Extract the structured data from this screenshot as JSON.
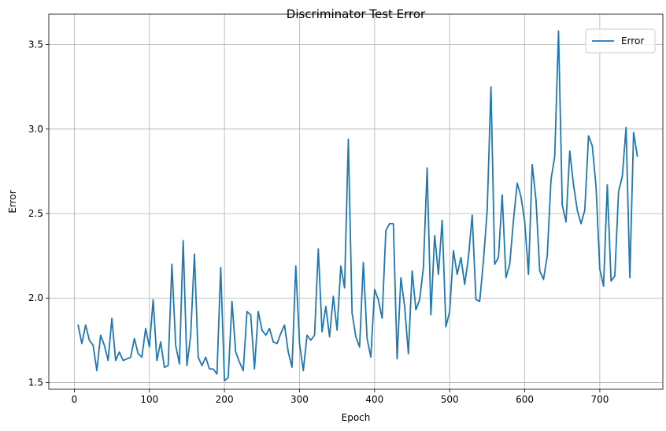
{
  "chart_data": {
    "type": "line",
    "title": "Discriminator Test Error",
    "xlabel": "Epoch",
    "ylabel": "Error",
    "xlim": [
      -34,
      784
    ],
    "ylim": [
      1.46,
      3.68
    ],
    "xticks": [
      0,
      100,
      200,
      300,
      400,
      500,
      600,
      700
    ],
    "yticks": [
      1.5,
      2.0,
      2.5,
      3.0,
      3.5
    ],
    "ytick_labels": [
      "1.5",
      "2.0",
      "2.5",
      "3.0",
      "3.5"
    ],
    "grid": true,
    "legend": "top-right",
    "series": [
      {
        "name": "Error",
        "color": "#1f77b4",
        "x": [
          5,
          10,
          15,
          20,
          25,
          30,
          35,
          40,
          45,
          50,
          55,
          60,
          65,
          70,
          75,
          80,
          85,
          90,
          95,
          100,
          105,
          110,
          115,
          120,
          125,
          130,
          135,
          140,
          145,
          150,
          155,
          160,
          165,
          170,
          175,
          180,
          185,
          190,
          195,
          200,
          205,
          210,
          215,
          220,
          225,
          230,
          235,
          240,
          245,
          250,
          255,
          260,
          265,
          270,
          275,
          280,
          285,
          290,
          295,
          300,
          305,
          310,
          315,
          320,
          325,
          330,
          335,
          340,
          345,
          350,
          355,
          360,
          365,
          370,
          375,
          380,
          385,
          390,
          395,
          400,
          405,
          410,
          415,
          420,
          425,
          430,
          435,
          440,
          445,
          450,
          455,
          460,
          465,
          470,
          475,
          480,
          485,
          490,
          495,
          500,
          505,
          510,
          515,
          520,
          525,
          530,
          535,
          540,
          545,
          550,
          555,
          560,
          565,
          570,
          575,
          580,
          585,
          590,
          595,
          600,
          605,
          610,
          615,
          620,
          625,
          630,
          635,
          640,
          645,
          650,
          655,
          660,
          665,
          670,
          675,
          680,
          685,
          690,
          695,
          700,
          705,
          710,
          715,
          720,
          725,
          730,
          735,
          740,
          745,
          750
        ],
        "values": [
          1.84,
          1.73,
          1.84,
          1.75,
          1.72,
          1.57,
          1.78,
          1.72,
          1.63,
          1.88,
          1.63,
          1.68,
          1.63,
          1.64,
          1.65,
          1.76,
          1.67,
          1.65,
          1.82,
          1.71,
          1.99,
          1.63,
          1.74,
          1.59,
          1.6,
          2.2,
          1.72,
          1.61,
          2.34,
          1.6,
          1.78,
          2.26,
          1.65,
          1.6,
          1.65,
          1.58,
          1.58,
          1.55,
          2.18,
          1.51,
          1.53,
          1.98,
          1.68,
          1.62,
          1.57,
          1.92,
          1.9,
          1.58,
          1.92,
          1.81,
          1.78,
          1.82,
          1.74,
          1.73,
          1.79,
          1.84,
          1.68,
          1.59,
          2.19,
          1.73,
          1.57,
          1.78,
          1.75,
          1.78,
          2.29,
          1.8,
          1.95,
          1.77,
          2.01,
          1.81,
          2.19,
          2.06,
          2.94,
          1.91,
          1.77,
          1.71,
          2.21,
          1.76,
          1.65,
          2.05,
          1.99,
          1.88,
          2.4,
          2.44,
          2.44,
          1.64,
          2.12,
          1.95,
          1.67,
          2.16,
          1.93,
          1.99,
          2.18,
          2.77,
          1.9,
          2.37,
          2.14,
          2.46,
          1.83,
          1.92,
          2.28,
          2.14,
          2.24,
          2.08,
          2.24,
          2.49,
          1.99,
          1.98,
          2.22,
          2.52,
          3.25,
          2.2,
          2.24,
          2.61,
          2.12,
          2.2,
          2.46,
          2.68,
          2.6,
          2.45,
          2.14,
          2.79,
          2.58,
          2.16,
          2.11,
          2.25,
          2.7,
          2.84,
          3.58,
          2.55,
          2.45,
          2.87,
          2.67,
          2.52,
          2.44,
          2.52,
          2.96,
          2.9,
          2.66,
          2.17,
          2.07,
          2.67,
          2.1,
          2.13,
          2.63,
          2.72,
          3.01,
          2.12,
          2.98,
          2.84
        ]
      }
    ]
  }
}
